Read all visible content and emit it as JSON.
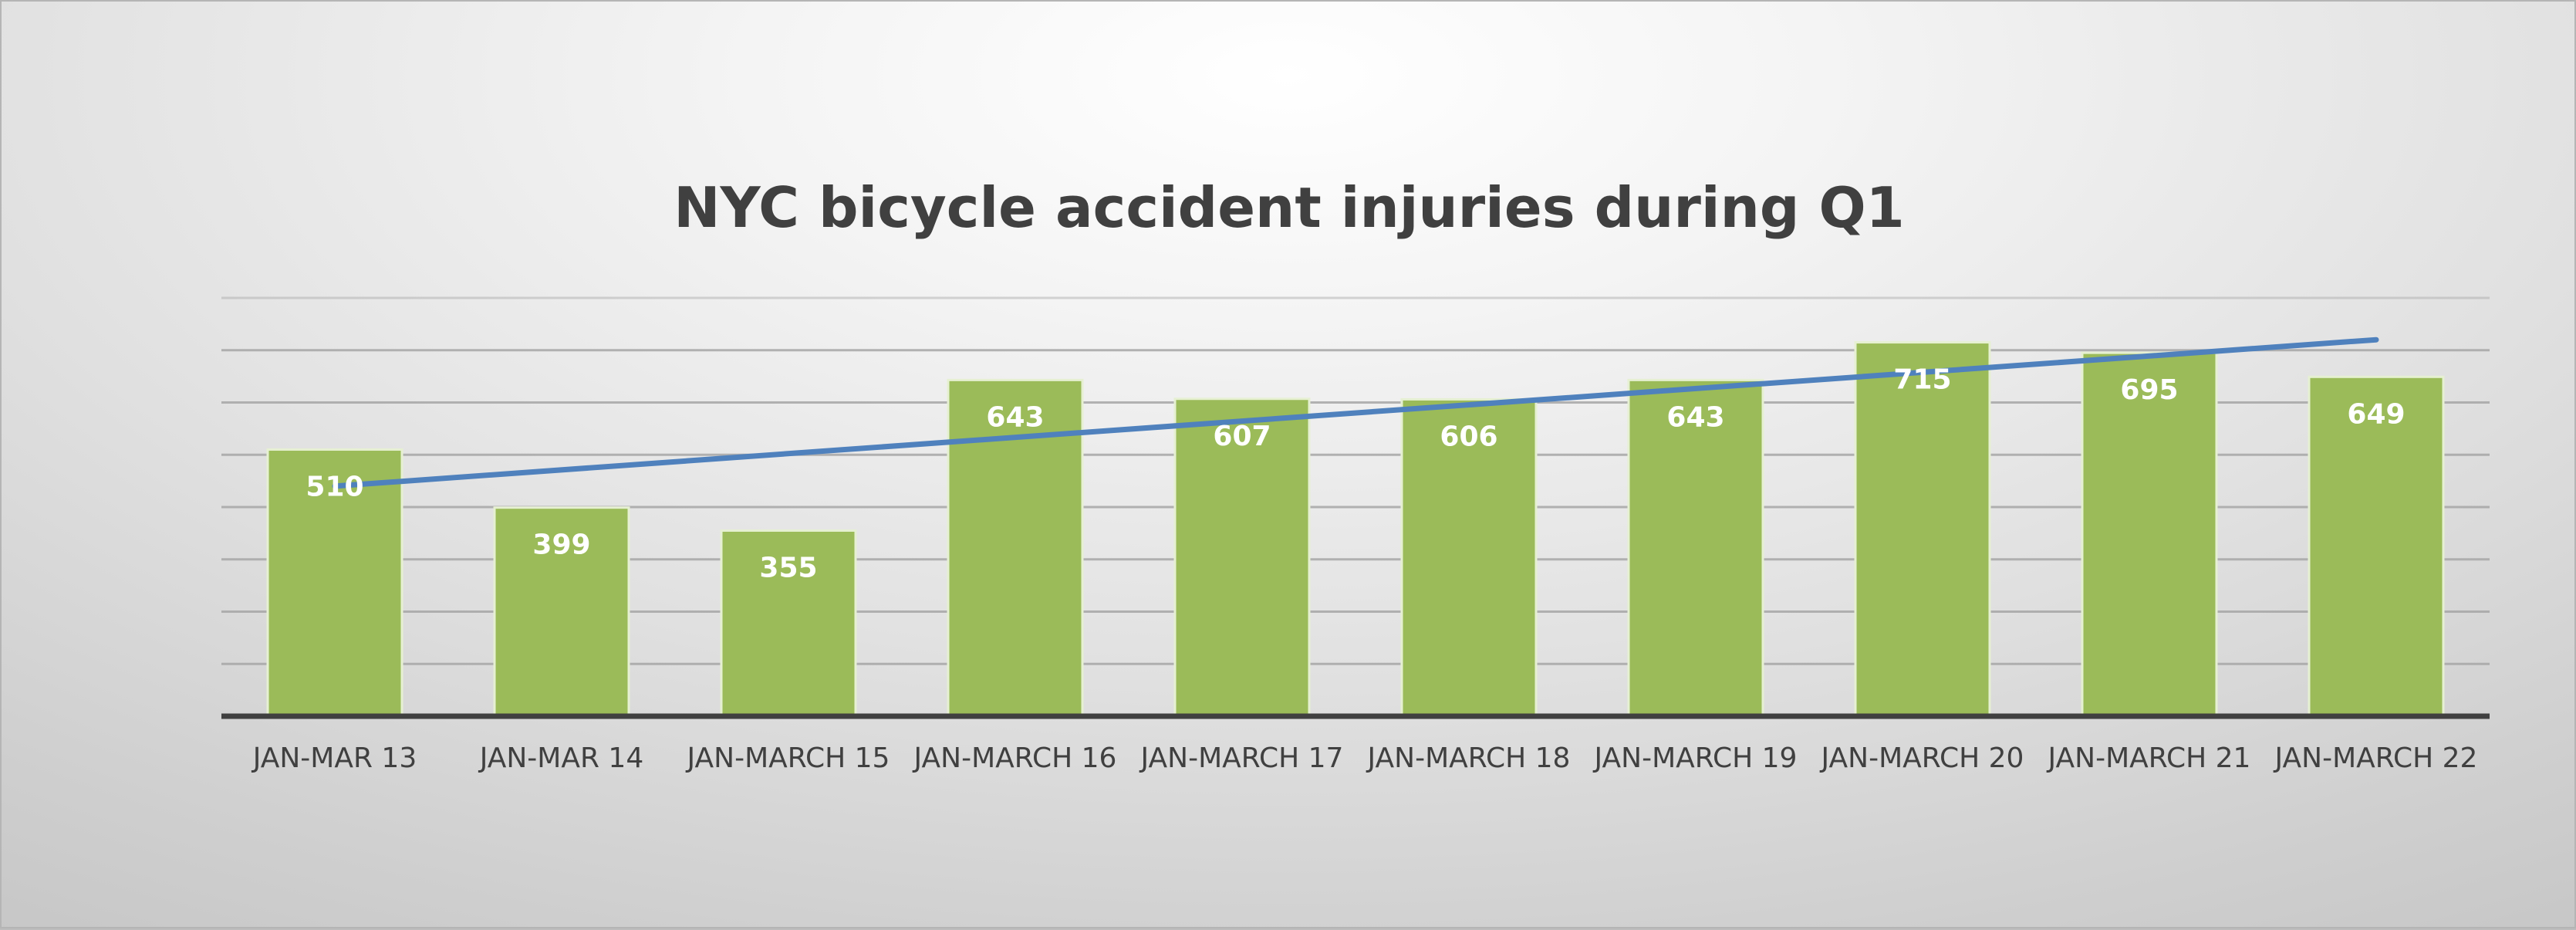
{
  "chart_data": {
    "type": "bar",
    "title": "NYC bicycle accident injuries during Q1",
    "xlabel": "",
    "ylabel": "",
    "categories": [
      "JAN-MAR 13",
      "JAN-MAR 14",
      "JAN-MARCH 15",
      "JAN-MARCH 16",
      "JAN-MARCH 17",
      "JAN-MARCH 18",
      "JAN-MARCH 19",
      "JAN-MARCH 20",
      "JAN-MARCH 21",
      "JAN-MARCH 22"
    ],
    "values": [
      510,
      399,
      355,
      643,
      607,
      606,
      643,
      715,
      695,
      649
    ],
    "trendline": {
      "type": "linear",
      "start": 440,
      "end": 720
    },
    "ylim": [
      0,
      800
    ],
    "y_axis_visible": false,
    "grid": true,
    "legend": "none",
    "colors": {
      "bar": "#9bbb59",
      "bar_border": "#e6f0d2",
      "trendline": "#4f81bd",
      "axis": "#404040",
      "gridline": "#a6a6a6",
      "title": "#404040",
      "data_label": "#ffffff"
    }
  }
}
